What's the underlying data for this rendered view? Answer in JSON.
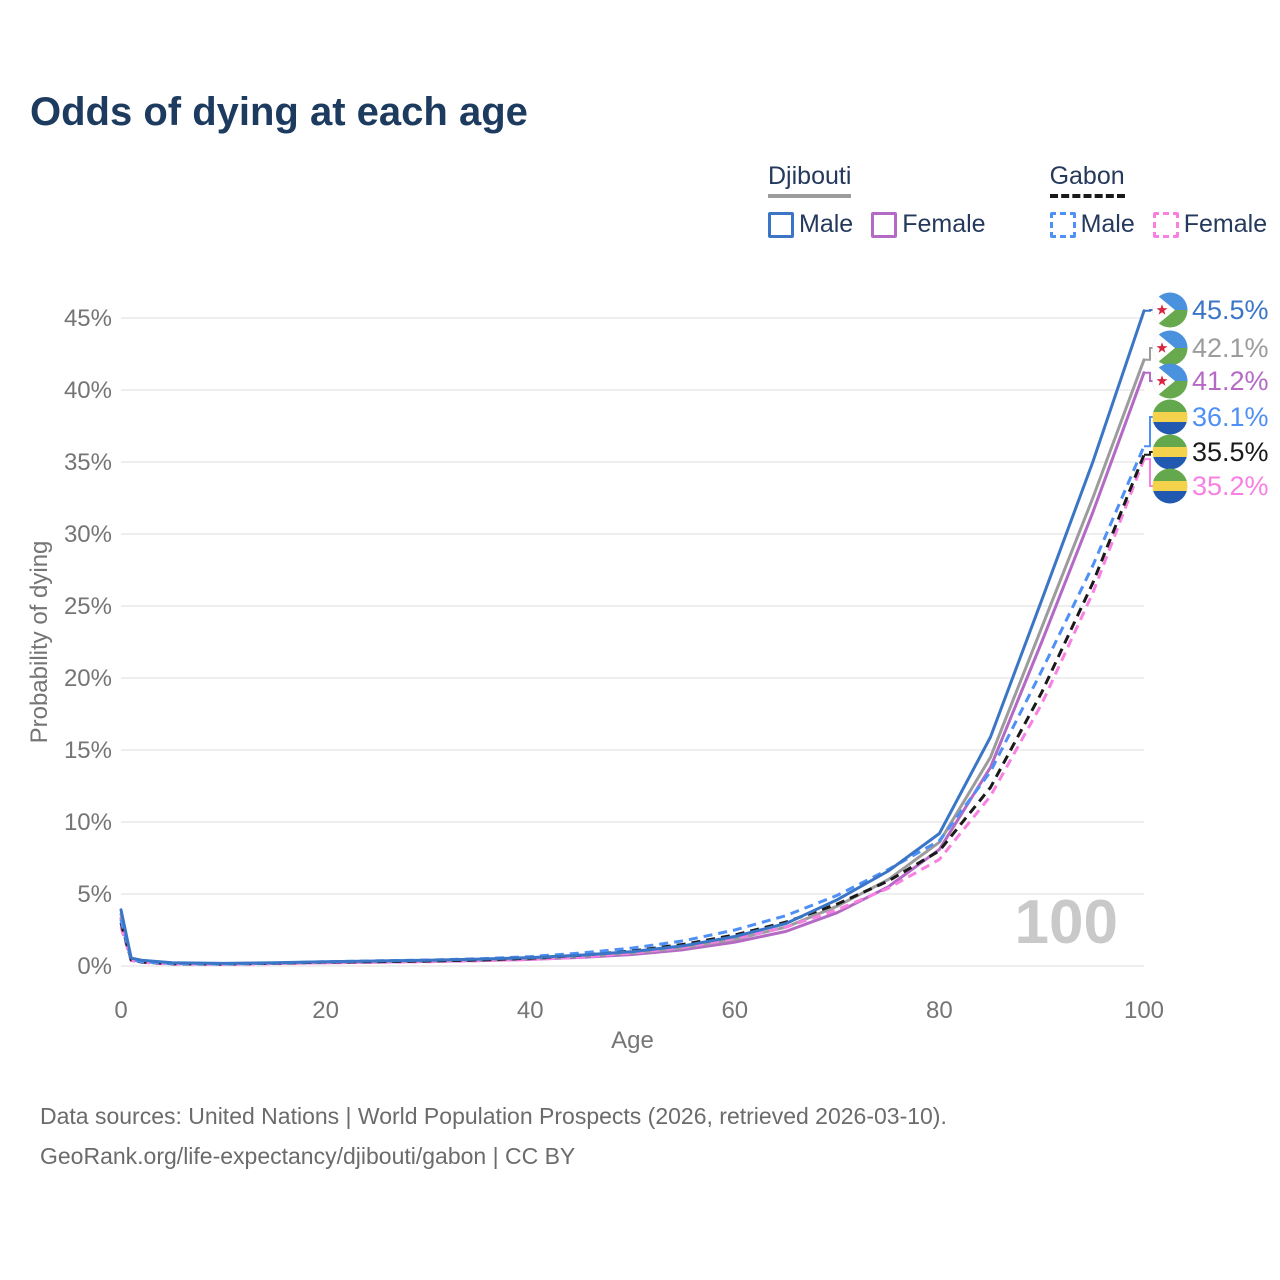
{
  "header": {
    "title": "Odds of dying at each age"
  },
  "watermark_age": "100",
  "legend": {
    "groups": [
      {
        "name": "Djibouti",
        "underline_style": "solid",
        "underline_color": "#9c9c9c",
        "items": [
          {
            "label": "Male",
            "color": "#3b76c6",
            "dashed": false
          },
          {
            "label": "Female",
            "color": "#b46ac4",
            "dashed": false
          }
        ]
      },
      {
        "name": "Gabon",
        "underline_style": "dashed",
        "underline_color": "#1a1a1a",
        "items": [
          {
            "label": "Male",
            "color": "#4e90f5",
            "dashed": true
          },
          {
            "label": "Female",
            "color": "#f880e2",
            "dashed": true
          }
        ]
      }
    ]
  },
  "chart_data": {
    "type": "line",
    "title": "Odds of dying at each age",
    "xlabel": "Age",
    "ylabel": "Probability of dying",
    "xlim": [
      0,
      100
    ],
    "ylim": [
      0,
      45
    ],
    "x_ticks": [
      0,
      20,
      40,
      60,
      80,
      100
    ],
    "y_ticks": [
      0,
      5,
      10,
      15,
      20,
      25,
      30,
      35,
      40,
      45
    ],
    "y_tick_suffix": "%",
    "grid": "horizontal",
    "legend_position": "top-right",
    "ages": [
      0,
      1,
      2,
      5,
      10,
      15,
      20,
      25,
      30,
      35,
      40,
      45,
      50,
      55,
      60,
      65,
      70,
      75,
      80,
      85,
      90,
      95,
      100
    ],
    "series": [
      {
        "name": "Djibouti Male",
        "country": "Djibouti",
        "sex": "Male",
        "color": "#3b76c6",
        "dashed": false,
        "flag": "djibouti",
        "end_label": "45.5%",
        "label_color": "#3b76c6",
        "values": [
          3.9,
          0.55,
          0.4,
          0.22,
          0.18,
          0.23,
          0.3,
          0.35,
          0.4,
          0.48,
          0.58,
          0.76,
          1.0,
          1.4,
          2.05,
          2.95,
          4.6,
          6.6,
          9.2,
          15.9,
          25.4,
          35.0,
          45.5
        ]
      },
      {
        "name": "Djibouti Both sexes",
        "country": "Djibouti",
        "sex": "Both",
        "color": "#9c9c9c",
        "dashed": false,
        "flag": "djibouti",
        "end_label": "42.1%",
        "label_color": "#9c9c9c",
        "values": [
          3.6,
          0.5,
          0.37,
          0.2,
          0.17,
          0.2,
          0.27,
          0.31,
          0.36,
          0.43,
          0.52,
          0.68,
          0.9,
          1.27,
          1.85,
          2.7,
          4.15,
          6.0,
          8.6,
          14.5,
          23.5,
          32.5,
          42.1
        ]
      },
      {
        "name": "Djibouti Female",
        "country": "Djibouti",
        "sex": "Female",
        "color": "#b46ac4",
        "dashed": false,
        "flag": "djibouti",
        "end_label": "41.2%",
        "label_color": "#b46ac4",
        "values": [
          3.3,
          0.45,
          0.33,
          0.18,
          0.15,
          0.18,
          0.23,
          0.27,
          0.32,
          0.38,
          0.46,
          0.6,
          0.8,
          1.13,
          1.65,
          2.4,
          3.7,
          5.5,
          8.1,
          13.8,
          22.5,
          31.5,
          41.2
        ]
      },
      {
        "name": "Gabon Male",
        "country": "Gabon",
        "sex": "Male",
        "color": "#4e90f5",
        "dashed": true,
        "flag": "gabon",
        "end_label": "36.1%",
        "label_color": "#4e90f5",
        "values": [
          3.2,
          0.45,
          0.3,
          0.17,
          0.14,
          0.2,
          0.3,
          0.36,
          0.42,
          0.5,
          0.65,
          0.9,
          1.25,
          1.75,
          2.5,
          3.5,
          4.9,
          6.7,
          8.7,
          13.5,
          20.5,
          27.8,
          36.1
        ]
      },
      {
        "name": "Gabon Both sexes",
        "country": "Gabon",
        "sex": "Both",
        "color": "#1a1a1a",
        "dashed": true,
        "flag": "gabon",
        "end_label": "35.5%",
        "label_color": "#1a1a1a",
        "values": [
          3.0,
          0.42,
          0.28,
          0.15,
          0.13,
          0.19,
          0.28,
          0.3,
          0.35,
          0.42,
          0.54,
          0.75,
          1.05,
          1.5,
          2.15,
          3.05,
          4.3,
          5.9,
          8.0,
          12.4,
          19.0,
          26.6,
          35.5
        ]
      },
      {
        "name": "Gabon Female",
        "country": "Gabon",
        "sex": "Female",
        "color": "#f880e2",
        "dashed": true,
        "flag": "gabon",
        "end_label": "35.2%",
        "label_color": "#f880e2",
        "values": [
          2.7,
          0.38,
          0.25,
          0.13,
          0.11,
          0.16,
          0.22,
          0.26,
          0.3,
          0.36,
          0.45,
          0.62,
          0.9,
          1.3,
          1.9,
          2.7,
          3.9,
          5.4,
          7.4,
          11.8,
          18.2,
          25.9,
          35.2
        ]
      }
    ]
  },
  "footer": {
    "line1": "Data sources: United Nations | World Population Prospects (2026, retrieved 2026-03-10).",
    "line2": "GeoRank.org/life-expectancy/djibouti/gabon | CC BY"
  }
}
